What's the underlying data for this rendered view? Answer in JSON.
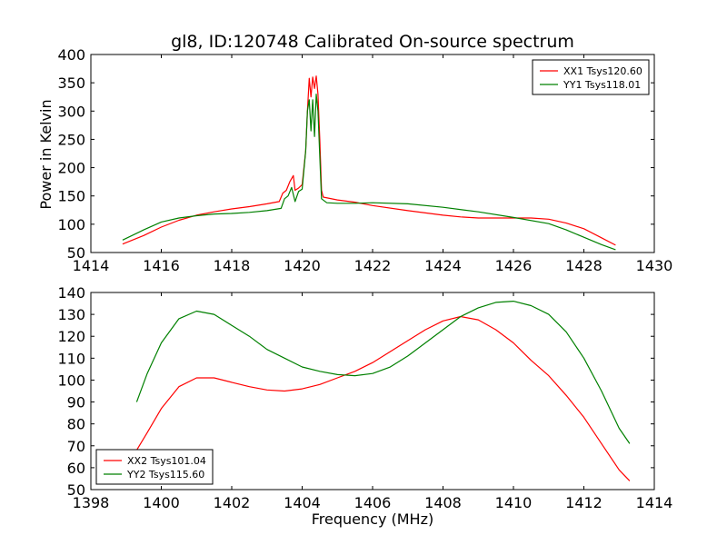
{
  "chart_data": {
    "title": "gl8, ID:120748 Calibrated On-source spectrum",
    "x_axis_label": "Frequency (MHz)",
    "y_axis_label": "Power in Kelvin",
    "panels": [
      {
        "type": "line",
        "xlim": [
          1414,
          1430
        ],
        "ylim": [
          50,
          400
        ],
        "xticks": [
          1414,
          1416,
          1418,
          1420,
          1422,
          1424,
          1426,
          1428,
          1430
        ],
        "yticks": [
          50,
          100,
          150,
          200,
          250,
          300,
          350,
          400
        ],
        "legend_position": "top-right",
        "grid": false,
        "series": [
          {
            "name": "XX1 Tsys120.60",
            "color": "#ff0000",
            "points": [
              [
                1414.9,
                65
              ],
              [
                1415.5,
                80
              ],
              [
                1416.0,
                95
              ],
              [
                1416.5,
                107
              ],
              [
                1417.0,
                116
              ],
              [
                1417.5,
                122
              ],
              [
                1418.0,
                127
              ],
              [
                1418.5,
                131
              ],
              [
                1419.0,
                136
              ],
              [
                1419.35,
                140
              ],
              [
                1419.45,
                155
              ],
              [
                1419.55,
                160
              ],
              [
                1419.65,
                175
              ],
              [
                1419.75,
                186
              ],
              [
                1419.8,
                160
              ],
              [
                1419.9,
                164
              ],
              [
                1420.0,
                170
              ],
              [
                1420.1,
                230
              ],
              [
                1420.15,
                300
              ],
              [
                1420.2,
                358
              ],
              [
                1420.25,
                325
              ],
              [
                1420.3,
                360
              ],
              [
                1420.35,
                340
              ],
              [
                1420.4,
                362
              ],
              [
                1420.45,
                330
              ],
              [
                1420.5,
                250
              ],
              [
                1420.55,
                160
              ],
              [
                1420.6,
                148
              ],
              [
                1421.0,
                143
              ],
              [
                1421.5,
                139
              ],
              [
                1422.0,
                133
              ],
              [
                1423.0,
                124
              ],
              [
                1424.0,
                116
              ],
              [
                1424.5,
                113
              ],
              [
                1425.0,
                111
              ],
              [
                1425.5,
                111
              ],
              [
                1426.0,
                111
              ],
              [
                1426.5,
                111
              ],
              [
                1427.0,
                109
              ],
              [
                1427.5,
                102
              ],
              [
                1428.0,
                92
              ],
              [
                1428.5,
                76
              ],
              [
                1428.9,
                63
              ]
            ]
          },
          {
            "name": "YY1 Tsys118.01",
            "color": "#008000",
            "points": [
              [
                1414.9,
                72
              ],
              [
                1415.5,
                90
              ],
              [
                1416.0,
                104
              ],
              [
                1416.5,
                111
              ],
              [
                1417.0,
                115
              ],
              [
                1417.5,
                118
              ],
              [
                1418.0,
                119
              ],
              [
                1418.5,
                121
              ],
              [
                1419.0,
                124
              ],
              [
                1419.4,
                128
              ],
              [
                1419.5,
                145
              ],
              [
                1419.6,
                150
              ],
              [
                1419.7,
                165
              ],
              [
                1419.8,
                140
              ],
              [
                1419.9,
                158
              ],
              [
                1420.0,
                162
              ],
              [
                1420.1,
                230
              ],
              [
                1420.15,
                300
              ],
              [
                1420.2,
                320
              ],
              [
                1420.25,
                265
              ],
              [
                1420.3,
                320
              ],
              [
                1420.35,
                255
              ],
              [
                1420.4,
                330
              ],
              [
                1420.45,
                300
              ],
              [
                1420.5,
                220
              ],
              [
                1420.55,
                145
              ],
              [
                1420.7,
                138
              ],
              [
                1421.0,
                137
              ],
              [
                1421.5,
                137
              ],
              [
                1422.0,
                138
              ],
              [
                1423.0,
                136
              ],
              [
                1424.0,
                130
              ],
              [
                1425.0,
                122
              ],
              [
                1426.0,
                112
              ],
              [
                1427.0,
                101
              ],
              [
                1427.5,
                90
              ],
              [
                1428.0,
                77
              ],
              [
                1428.5,
                64
              ],
              [
                1428.9,
                55
              ]
            ]
          }
        ]
      },
      {
        "type": "line",
        "xlim": [
          1398,
          1414
        ],
        "ylim": [
          50,
          140
        ],
        "xticks": [
          1398,
          1400,
          1402,
          1404,
          1406,
          1408,
          1410,
          1412,
          1414
        ],
        "yticks": [
          50,
          60,
          70,
          80,
          90,
          100,
          110,
          120,
          130,
          140
        ],
        "legend_position": "bottom-left",
        "grid": false,
        "series": [
          {
            "name": "XX2 Tsys101.04",
            "color": "#ff0000",
            "points": [
              [
                1399.3,
                68
              ],
              [
                1399.6,
                76
              ],
              [
                1400.0,
                87
              ],
              [
                1400.5,
                97
              ],
              [
                1401.0,
                101
              ],
              [
                1401.5,
                101
              ],
              [
                1402.0,
                99
              ],
              [
                1402.5,
                97
              ],
              [
                1403.0,
                95.5
              ],
              [
                1403.5,
                95
              ],
              [
                1404.0,
                96
              ],
              [
                1404.5,
                98
              ],
              [
                1405.0,
                101
              ],
              [
                1405.5,
                104
              ],
              [
                1406.0,
                108
              ],
              [
                1406.5,
                113
              ],
              [
                1407.0,
                118
              ],
              [
                1407.5,
                123
              ],
              [
                1408.0,
                127
              ],
              [
                1408.5,
                129
              ],
              [
                1409.0,
                127.5
              ],
              [
                1409.5,
                123
              ],
              [
                1410.0,
                117
              ],
              [
                1410.5,
                109
              ],
              [
                1411.0,
                102
              ],
              [
                1411.5,
                93
              ],
              [
                1412.0,
                83
              ],
              [
                1412.5,
                71
              ],
              [
                1413.0,
                59
              ],
              [
                1413.3,
                54
              ]
            ]
          },
          {
            "name": "YY2 Tsys115.60",
            "color": "#008000",
            "points": [
              [
                1399.3,
                90
              ],
              [
                1399.6,
                103
              ],
              [
                1400.0,
                117
              ],
              [
                1400.5,
                128
              ],
              [
                1401.0,
                131.5
              ],
              [
                1401.5,
                130
              ],
              [
                1402.0,
                125
              ],
              [
                1402.5,
                120
              ],
              [
                1403.0,
                114
              ],
              [
                1403.5,
                110
              ],
              [
                1404.0,
                106
              ],
              [
                1404.5,
                104
              ],
              [
                1405.0,
                102.5
              ],
              [
                1405.5,
                102
              ],
              [
                1406.0,
                103
              ],
              [
                1406.5,
                106
              ],
              [
                1407.0,
                111
              ],
              [
                1407.5,
                117
              ],
              [
                1408.0,
                123
              ],
              [
                1408.5,
                129
              ],
              [
                1409.0,
                133
              ],
              [
                1409.5,
                135.5
              ],
              [
                1410.0,
                136
              ],
              [
                1410.5,
                134
              ],
              [
                1411.0,
                130
              ],
              [
                1411.5,
                122
              ],
              [
                1412.0,
                110
              ],
              [
                1412.5,
                95
              ],
              [
                1413.0,
                78
              ],
              [
                1413.3,
                71
              ]
            ]
          }
        ]
      }
    ]
  }
}
